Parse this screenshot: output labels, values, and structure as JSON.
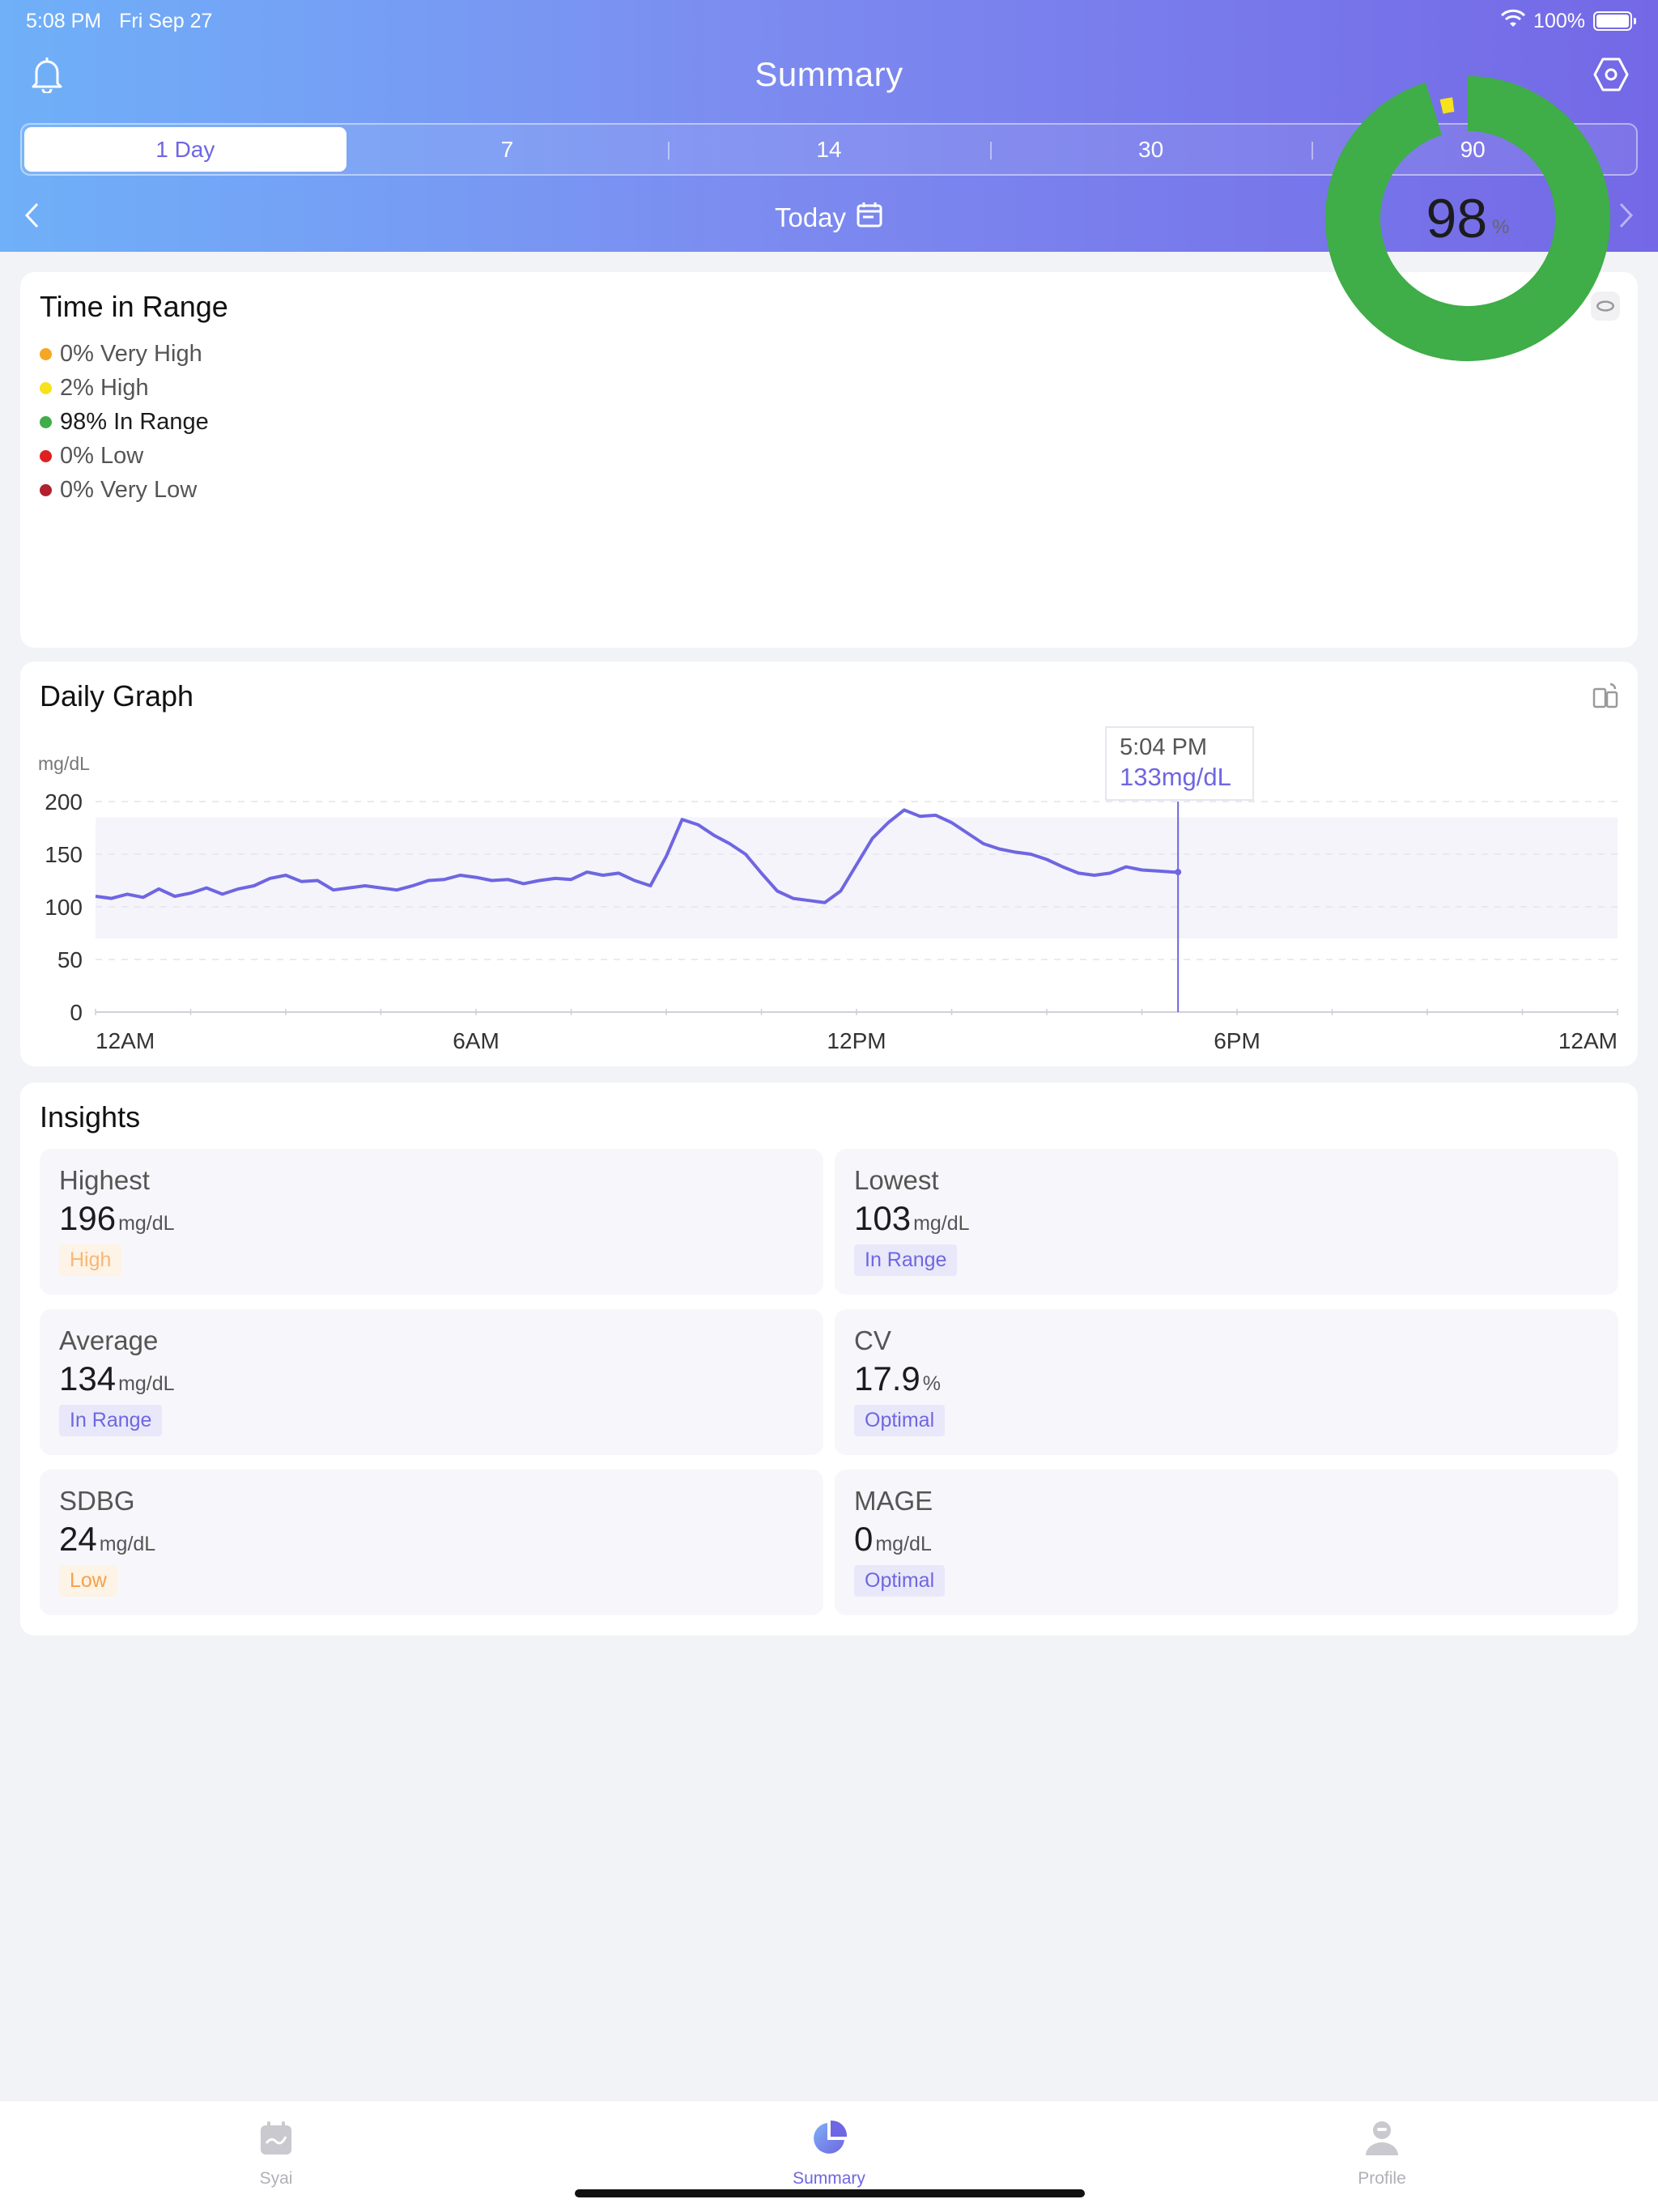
{
  "status": {
    "time": "5:08 PM",
    "date": "Fri Sep 27",
    "battery": "100%"
  },
  "header": {
    "title": "Summary",
    "left_icon": "bell-icon",
    "right_icon": "settings-hexagon-icon"
  },
  "segments": [
    "1 Day",
    "7",
    "14",
    "30",
    "90"
  ],
  "date_nav": {
    "label": "Today"
  },
  "time_in_range": {
    "title": "Time in Range",
    "items": [
      {
        "label": "0% Very High",
        "color": "#f5a623"
      },
      {
        "label": "2% High",
        "color": "#f7e21b"
      },
      {
        "label": "98% In Range",
        "color": "#3fad48"
      },
      {
        "label": "0% Low",
        "color": "#e02020"
      },
      {
        "label": "0% Very Low",
        "color": "#b21f2d"
      }
    ],
    "center_value": "98",
    "center_unit": "%",
    "in_range_fraction": 0.98,
    "high_fraction": 0.02
  },
  "daily_graph": {
    "title": "Daily Graph",
    "unit": "mg/dL",
    "tooltip_time": "5:04 PM",
    "tooltip_value": "133mg/dL"
  },
  "chart_data": {
    "type": "line",
    "title": "",
    "xlabel": "",
    "ylabel": "mg/dL",
    "ylim": [
      0,
      200
    ],
    "xlim_hours": [
      0,
      24
    ],
    "y_ticks": [
      "200",
      "150",
      "100",
      "50",
      "0"
    ],
    "x_ticks": [
      "12AM",
      "6AM",
      "12PM",
      "6PM",
      "12AM"
    ],
    "target_range": [
      70,
      185
    ],
    "series": [
      {
        "x_hours": [
          0,
          0.25,
          0.5,
          0.75,
          1,
          1.25,
          1.5,
          1.75,
          2,
          2.25,
          2.5,
          2.75,
          3,
          3.25,
          3.5,
          3.75,
          4,
          4.25,
          4.5,
          4.75,
          5,
          5.25,
          5.5,
          5.75,
          6,
          6.25,
          6.5,
          6.75,
          7,
          7.25,
          7.5,
          7.75,
          8,
          8.25,
          8.5,
          8.75,
          9,
          9.25,
          9.5,
          9.75,
          10,
          10.25,
          10.5,
          10.75,
          11,
          11.25,
          11.5,
          11.75,
          12,
          12.25,
          12.5,
          12.75,
          13,
          13.25,
          13.5,
          13.75,
          14,
          14.25,
          14.5,
          14.75,
          15,
          15.25,
          15.5,
          15.75,
          16,
          16.25,
          16.5,
          16.75,
          17,
          17.07
        ],
        "values": [
          110,
          108,
          112,
          109,
          117,
          110,
          113,
          118,
          112,
          117,
          120,
          127,
          130,
          124,
          125,
          116,
          118,
          120,
          118,
          116,
          120,
          125,
          126,
          130,
          128,
          125,
          126,
          122,
          125,
          127,
          126,
          133,
          130,
          132,
          125,
          120,
          148,
          183,
          178,
          168,
          160,
          150,
          132,
          115,
          108,
          106,
          104,
          115,
          140,
          165,
          180,
          192,
          186,
          187,
          180,
          170,
          160,
          155,
          152,
          150,
          145,
          138,
          132,
          130,
          132,
          138,
          135,
          134,
          133,
          133
        ]
      }
    ]
  },
  "insights": {
    "title": "Insights",
    "items": [
      {
        "label": "Highest",
        "value": "196",
        "unit": "mg/dL",
        "badge": "High",
        "badge_style": "orange-light"
      },
      {
        "label": "Lowest",
        "value": "103",
        "unit": "mg/dL",
        "badge": "In Range",
        "badge_style": "purple"
      },
      {
        "label": "Average",
        "value": "134",
        "unit": "mg/dL",
        "badge": "In Range",
        "badge_style": "purple"
      },
      {
        "label": "CV",
        "value": "17.9",
        "unit": "%",
        "badge": "Optimal",
        "badge_style": "purple"
      },
      {
        "label": "SDBG",
        "value": "24",
        "unit": "mg/dL",
        "badge": "Low",
        "badge_style": "orange"
      },
      {
        "label": "MAGE",
        "value": "0",
        "unit": "mg/dL",
        "badge": "Optimal",
        "badge_style": "purple"
      }
    ]
  },
  "tabbar": [
    {
      "label": "Syai",
      "icon": "calendar-icon"
    },
    {
      "label": "Summary",
      "icon": "pie-chart-icon"
    },
    {
      "label": "Profile",
      "icon": "person-icon"
    }
  ]
}
